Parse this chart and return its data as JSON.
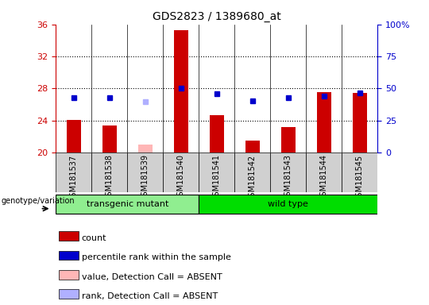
{
  "title": "GDS2823 / 1389680_at",
  "samples": [
    "GSM181537",
    "GSM181538",
    "GSM181539",
    "GSM181540",
    "GSM181541",
    "GSM181542",
    "GSM181543",
    "GSM181544",
    "GSM181545"
  ],
  "count_values": [
    24.1,
    23.4,
    null,
    35.3,
    24.7,
    21.5,
    23.2,
    27.5,
    27.4
  ],
  "count_absent": [
    null,
    null,
    21.0,
    null,
    null,
    null,
    null,
    null,
    null
  ],
  "rank_values": [
    26.8,
    26.8,
    null,
    28.0,
    27.3,
    26.4,
    26.8,
    27.0,
    27.4
  ],
  "rank_absent": [
    null,
    null,
    26.3,
    null,
    null,
    null,
    null,
    null,
    null
  ],
  "ylim": [
    20,
    36
  ],
  "yticks": [
    20,
    24,
    28,
    32,
    36
  ],
  "y2lim": [
    0,
    100
  ],
  "y2ticks": [
    0,
    25,
    50,
    75,
    100
  ],
  "y2tick_labels": [
    "0",
    "25",
    "50",
    "75",
    "100%"
  ],
  "groups": [
    {
      "label": "transgenic mutant",
      "start": 0,
      "end": 3,
      "color": "#90ee90"
    },
    {
      "label": "wild type",
      "start": 4,
      "end": 8,
      "color": "#00dd00"
    }
  ],
  "group_label": "genotype/variation",
  "count_color": "#cc0000",
  "count_absent_color": "#ffb6b6",
  "rank_color": "#0000cc",
  "rank_absent_color": "#b0b0ff",
  "bar_width": 0.4,
  "marker_size": 5,
  "background_color": "#ffffff",
  "plot_bg_color": "#ffffff",
  "left_tick_color": "#cc0000",
  "right_tick_color": "#0000cc",
  "sample_box_color": "#d0d0d0",
  "legend_items": [
    {
      "color": "#cc0000",
      "label": "count"
    },
    {
      "color": "#0000cc",
      "label": "percentile rank within the sample"
    },
    {
      "color": "#ffb6b6",
      "label": "value, Detection Call = ABSENT"
    },
    {
      "color": "#b0b0ff",
      "label": "rank, Detection Call = ABSENT"
    }
  ]
}
